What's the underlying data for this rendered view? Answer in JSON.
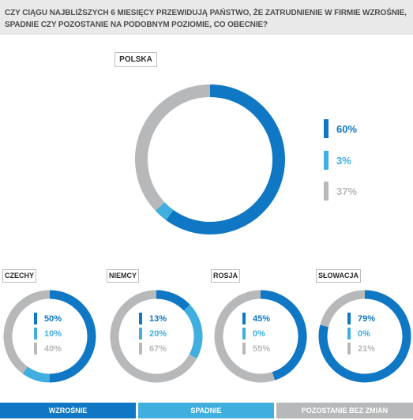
{
  "question": "CZY CIĄGU NAJBLIŻSZYCH 6 MIESIĘCY PRZEWIDUJĄ PAŃSTWO, ŻE ZATRUDNIENIE W FIRMIE WZROŚNIE, SPADNIE CZY POZOSTANIE NA PODOBNYM POZIOMIE, CO OBECNIE?",
  "colors": {
    "up": "#0f77c4",
    "down": "#40aedf",
    "same": "#b7b8ba"
  },
  "legend": {
    "up": "WZROŚNIE",
    "down": "SPADNIE",
    "same": "POZOSTANIE BEZ ZMIAN"
  },
  "chart_data": [
    {
      "type": "pie",
      "name": "POLSKA",
      "values": [
        60,
        3,
        37
      ],
      "labels": [
        "60%",
        "3%",
        "37%"
      ]
    },
    {
      "type": "pie",
      "name": "CZECHY",
      "values": [
        50,
        10,
        40
      ],
      "labels": [
        "50%",
        "10%",
        "40%"
      ]
    },
    {
      "type": "pie",
      "name": "NIEMCY",
      "values": [
        13,
        20,
        67
      ],
      "labels": [
        "13%",
        "20%",
        "67%"
      ]
    },
    {
      "type": "pie",
      "name": "ROSJA",
      "values": [
        45,
        0,
        55
      ],
      "labels": [
        "45%",
        "0%",
        "55%"
      ]
    },
    {
      "type": "pie",
      "name": "SŁOWACJA",
      "values": [
        79,
        0,
        21
      ],
      "labels": [
        "79%",
        "0%",
        "21%"
      ]
    }
  ]
}
